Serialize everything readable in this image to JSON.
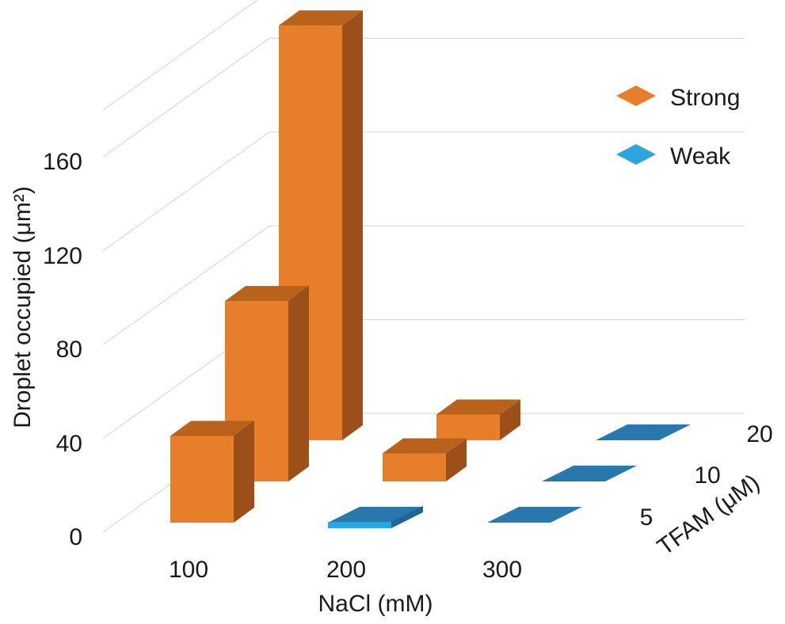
{
  "chart_data": {
    "type": "bar",
    "subtype": "3d-bar",
    "x_categories": [
      "100",
      "200",
      "300"
    ],
    "z_categories": [
      "5",
      "10",
      "20"
    ],
    "xlabel": "NaCl (mM)",
    "ylabel": "Droplet occupied (μm²)",
    "zlabel": "TFAM (μM)",
    "y_ticks": [
      "0",
      "40",
      "80",
      "120",
      "160"
    ],
    "ylim": [
      0,
      180
    ],
    "grid": true,
    "legend_position": "top-right",
    "legend": [
      {
        "name": "Strong",
        "color": "#E67E2A"
      },
      {
        "name": "Weak",
        "color": "#2FA3DC"
      }
    ],
    "bars": [
      {
        "x": "100",
        "z": "5",
        "value": 37,
        "type": "Strong"
      },
      {
        "x": "100",
        "z": "10",
        "value": 77,
        "type": "Strong"
      },
      {
        "x": "100",
        "z": "20",
        "value": 177,
        "type": "Strong"
      },
      {
        "x": "200",
        "z": "5",
        "value": 1,
        "type": "Weak"
      },
      {
        "x": "200",
        "z": "10",
        "value": 12,
        "type": "Strong"
      },
      {
        "x": "200",
        "z": "20",
        "value": 11,
        "type": "Strong"
      },
      {
        "x": "300",
        "z": "5",
        "value": 0,
        "type": "Weak"
      },
      {
        "x": "300",
        "z": "10",
        "value": 0,
        "type": "Weak"
      },
      {
        "x": "300",
        "z": "20",
        "value": 0,
        "type": "Weak"
      }
    ]
  }
}
